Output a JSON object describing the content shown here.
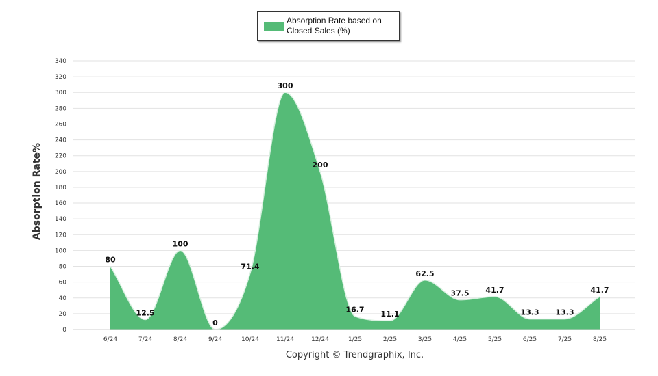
{
  "legend": {
    "label": "Absorption Rate based on Closed Sales (%)",
    "color": "#55bb77"
  },
  "copyright": "Copyright © Trendgraphix, Inc.",
  "chart_data": {
    "type": "area",
    "ylabel": "Absorption Rate%",
    "xlabel": "",
    "ylim": [
      0,
      340
    ],
    "ytick_step": 20,
    "grid": true,
    "legend_position": "top-center",
    "categories": [
      "6/24",
      "7/24",
      "8/24",
      "9/24",
      "10/24",
      "11/24",
      "12/24",
      "1/25",
      "2/25",
      "3/25",
      "4/25",
      "5/25",
      "6/25",
      "7/25",
      "8/25"
    ],
    "series": [
      {
        "name": "Absorption Rate based on Closed Sales (%)",
        "color": "#55bb77",
        "values": [
          80,
          12.5,
          100,
          0,
          71.4,
          300,
          200,
          16.7,
          11.1,
          62.5,
          37.5,
          41.7,
          13.3,
          13.3,
          41.7
        ],
        "labels": [
          "80",
          "12.5",
          "100",
          "0",
          "71.4",
          "300",
          "200",
          "16.7",
          "11.1",
          "62.5",
          "37.5",
          "41.7",
          "13.3",
          "13.3",
          "41.7"
        ]
      }
    ]
  }
}
